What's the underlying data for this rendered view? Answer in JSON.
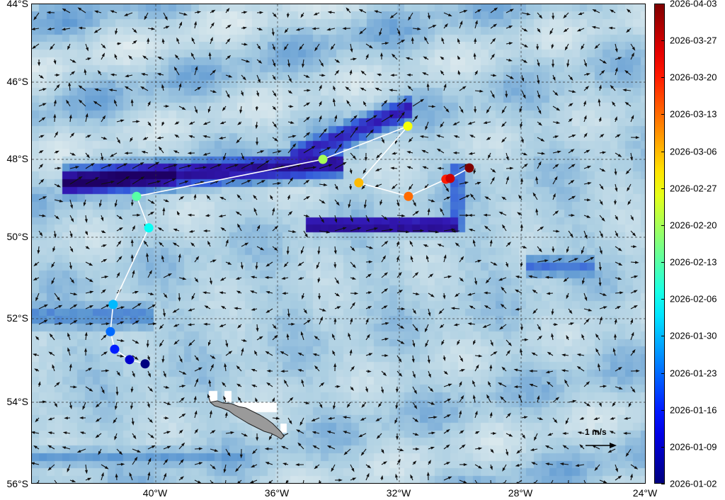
{
  "map": {
    "lon_ticks": [
      "40°W",
      "36°W",
      "32°W",
      "28°W",
      "24°W"
    ],
    "lat_ticks": [
      "44°S",
      "46°S",
      "48°S",
      "50°S",
      "52°S",
      "54°S",
      "56°S"
    ],
    "extent": {
      "lon": [
        -44,
        -24
      ],
      "lat": [
        -56,
        -44
      ]
    },
    "background": "surface current speed (blue shading) with current vectors",
    "land": "South Georgia",
    "land_color": "#9a9a9a",
    "track_line_color": "#ffffff",
    "scale_vector_label": "1 m/s"
  },
  "track": [
    {
      "date": "2026-01-02",
      "lon": -40.35,
      "lat": -53.08
    },
    {
      "date": "2026-01-09",
      "lon": -40.86,
      "lat": -52.98
    },
    {
      "date": "2026-01-16",
      "lon": -41.35,
      "lat": -52.73
    },
    {
      "date": "2026-01-23",
      "lon": -41.49,
      "lat": -52.31
    },
    {
      "date": "2026-01-30",
      "lon": -41.4,
      "lat": -51.65
    },
    {
      "date": "2026-02-06",
      "lon": -40.23,
      "lat": -49.76
    },
    {
      "date": "2026-02-13",
      "lon": -40.63,
      "lat": -48.95
    },
    {
      "date": "2026-02-20",
      "lon": -34.51,
      "lat": -48.0
    },
    {
      "date": "2026-02-27",
      "lon": -31.72,
      "lat": -47.14
    },
    {
      "date": "2026-03-06",
      "lon": -33.33,
      "lat": -48.6
    },
    {
      "date": "2026-03-13",
      "lon": -31.7,
      "lat": -48.95
    },
    {
      "date": "2026-03-20",
      "lon": -30.47,
      "lat": -48.51
    },
    {
      "date": "2026-03-27",
      "lon": -30.33,
      "lat": -48.49
    },
    {
      "date": "2026-04-03",
      "lon": -29.7,
      "lat": -48.22
    }
  ],
  "colorbar": {
    "colormap": "jet",
    "range": [
      "2026-01-02",
      "2026-04-03"
    ],
    "ticks": [
      "2026-04-03",
      "2026-03-27",
      "2026-03-20",
      "2026-03-13",
      "2026-03-06",
      "2026-02-27",
      "2026-02-20",
      "2026-02-13",
      "2026-02-06",
      "2026-01-30",
      "2026-01-23",
      "2026-01-16",
      "2026-01-09",
      "2026-01-02"
    ]
  }
}
